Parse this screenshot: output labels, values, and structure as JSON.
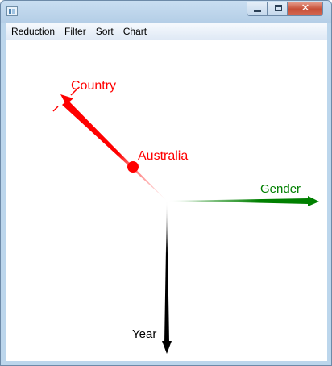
{
  "window": {
    "title": ""
  },
  "menu": [
    "Reduction",
    "Filter",
    "Sort",
    "Chart"
  ],
  "controls": {
    "close_glyph": "✕"
  },
  "chart": {
    "axes": [
      {
        "label": "Country",
        "color": "#ff0000"
      },
      {
        "label": "Gender",
        "color": "#008000"
      },
      {
        "label": "Year",
        "color": "#000000"
      }
    ],
    "point": {
      "label": "Australia",
      "color": "#ff0000"
    }
  }
}
